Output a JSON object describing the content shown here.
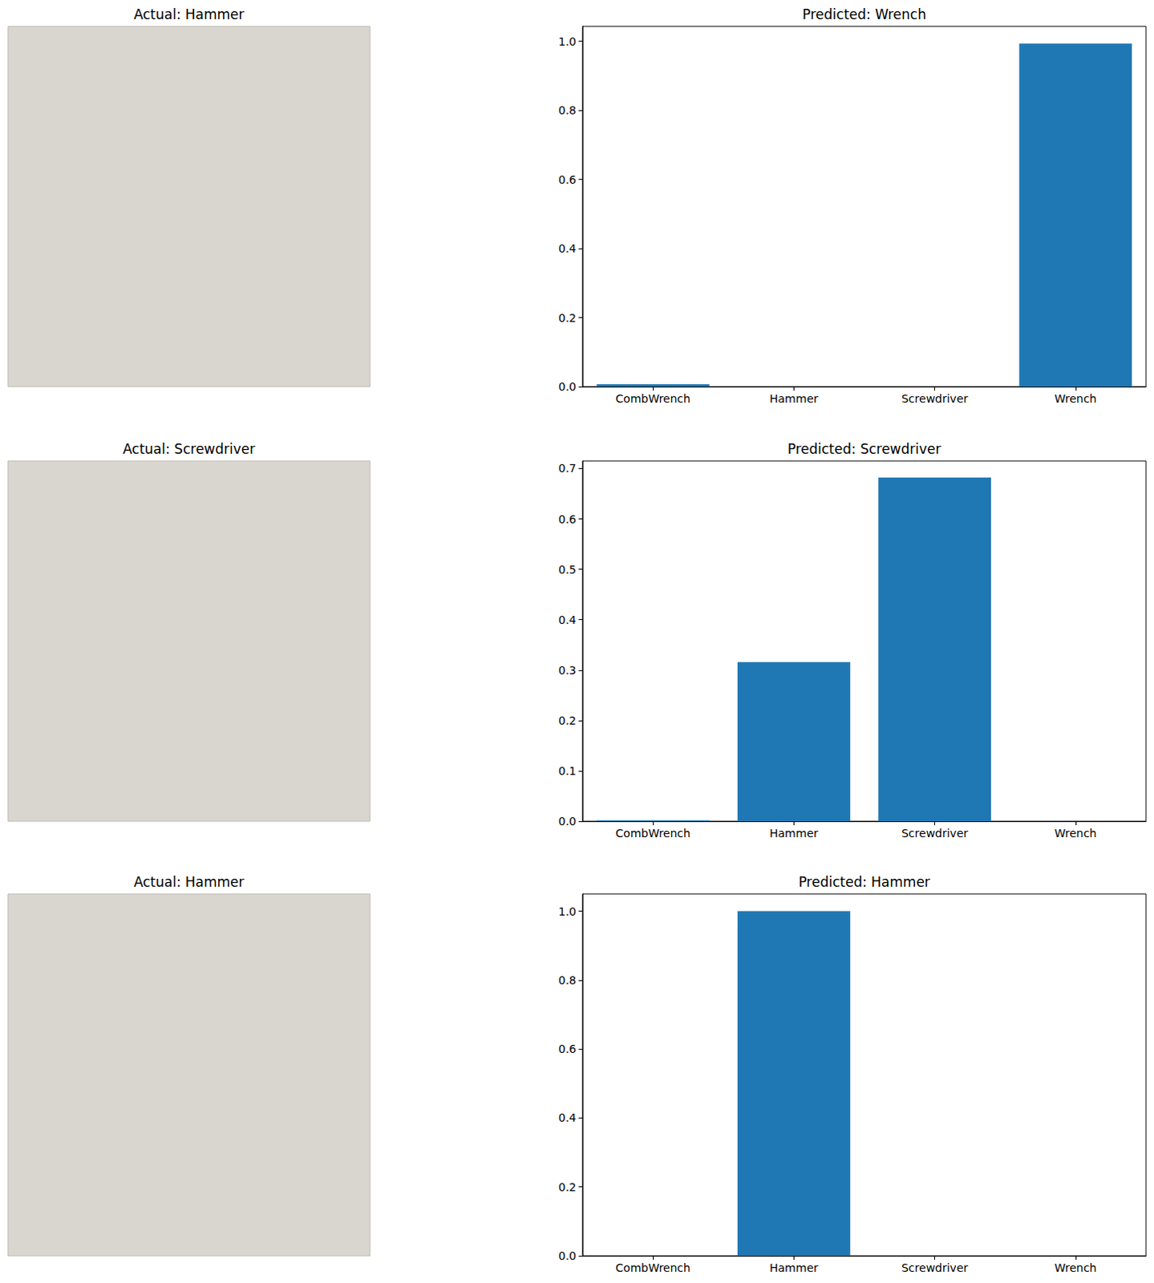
{
  "images": [
    {
      "title": "Actual: Hammer"
    },
    {
      "title": "Actual: Screwdriver"
    },
    {
      "title": "Actual: Hammer"
    }
  ],
  "chart_data": [
    {
      "type": "bar",
      "title": "Predicted: Wrench",
      "categories": [
        "CombWrench",
        "Hammer",
        "Screwdriver",
        "Wrench"
      ],
      "values": [
        0.007,
        0,
        0,
        0.993
      ],
      "color": "#1f77b4",
      "ylim": [
        0,
        1.043
      ],
      "yticks": [
        {
          "value": 0,
          "label": "0.0"
        },
        0.2,
        0.4,
        0.6,
        0.8,
        {
          "value": 1,
          "label": "1.0"
        }
      ],
      "grid": false
    },
    {
      "type": "bar",
      "title": "Predicted: Screwdriver",
      "categories": [
        "CombWrench",
        "Hammer",
        "Screwdriver",
        "Wrench"
      ],
      "values": [
        0.002,
        0.316,
        0.682,
        0
      ],
      "color": "#1f77b4",
      "ylim": [
        0,
        0.715
      ],
      "yticks": [
        {
          "value": 0,
          "label": "0.0"
        },
        0.1,
        0.2,
        0.3,
        0.4,
        0.5,
        0.6,
        0.7
      ],
      "grid": false
    },
    {
      "type": "bar",
      "title": "Predicted: Hammer",
      "categories": [
        "CombWrench",
        "Hammer",
        "Screwdriver",
        "Wrench"
      ],
      "values": [
        0,
        1,
        0,
        0
      ],
      "color": "#1f77b4",
      "ylim": [
        0,
        1.05
      ],
      "yticks": [
        {
          "value": 0,
          "label": "0.0"
        },
        0.2,
        0.4,
        0.6,
        0.8,
        {
          "value": 1,
          "label": "1.0"
        }
      ],
      "grid": false
    }
  ]
}
